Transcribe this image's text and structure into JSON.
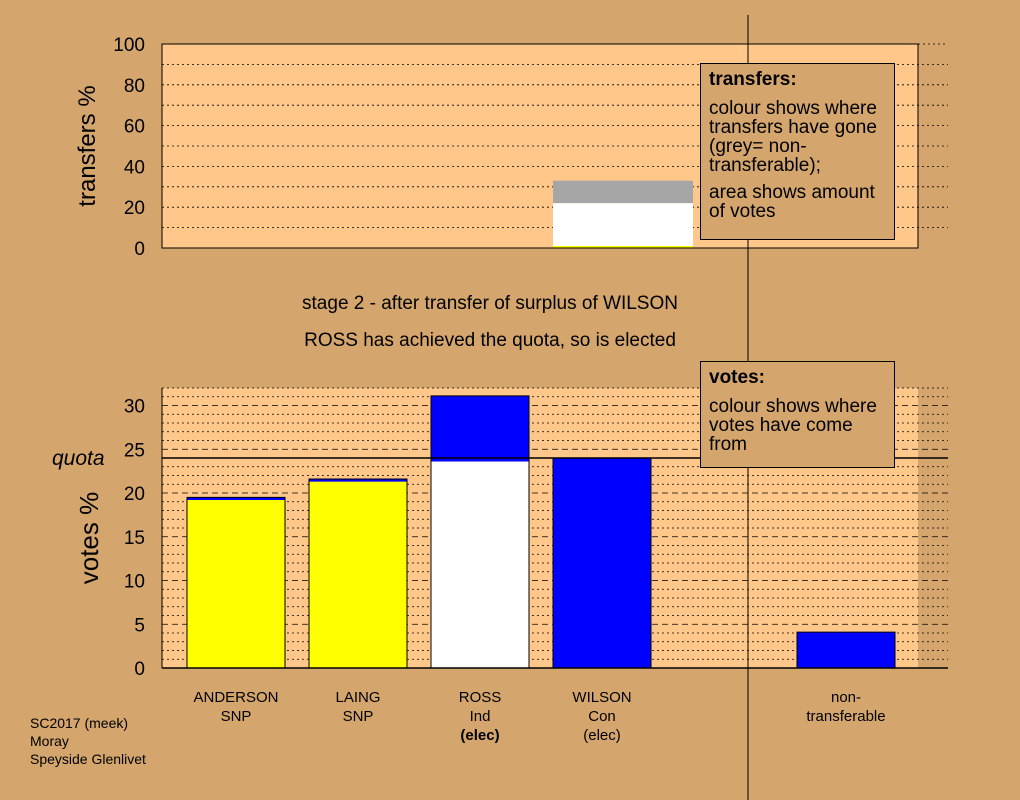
{
  "stage_title": "stage 2 - after transfer of surplus of WILSON",
  "stage_note": "ROSS has achieved the quota, so is elected",
  "transfers_legend": {
    "title": "transfers:",
    "line1": "colour shows where transfers have gone (grey= non-transferable);",
    "line2": "area shows amount of votes"
  },
  "votes_legend": {
    "title": "votes:",
    "line1": "colour shows where votes have come from"
  },
  "footer": {
    "line1": "SC2017 (meek)",
    "line2": "Moray",
    "line3": "Speyside Glenlivet"
  },
  "colors": {
    "background": "#d4a66e",
    "plot_area": "#ffc88a",
    "SNP": "#ffff00",
    "Ind": "#ffffff",
    "Con": "#0000ff",
    "non_transferable": "#a6a6a6"
  },
  "chart_data": [
    {
      "type": "bar",
      "id": "transfers",
      "ylabel": "transfers %",
      "ylim": [
        0,
        100
      ],
      "yticks": [
        0,
        20,
        40,
        60,
        80,
        100
      ],
      "grid": true,
      "transfer_from": "WILSON",
      "bars": [
        {
          "slot": 3,
          "segments": [
            {
              "to": "SNP",
              "value": 1,
              "color": "#ffff00"
            },
            {
              "to": "Ind",
              "value": 21,
              "color": "#ffffff"
            },
            {
              "to": "non-transferable",
              "value": 11,
              "color": "#a6a6a6"
            }
          ]
        }
      ]
    },
    {
      "type": "bar",
      "id": "votes",
      "ylabel": "votes %",
      "ylim": [
        0,
        32
      ],
      "yticks": [
        0,
        5,
        10,
        15,
        20,
        25,
        30
      ],
      "quota": 24,
      "quota_label": "quota",
      "grid": true,
      "categories": [
        {
          "name": "ANDERSON",
          "party": "SNP",
          "status": "",
          "status_bold": false
        },
        {
          "name": "LAING",
          "party": "SNP",
          "status": "",
          "status_bold": false
        },
        {
          "name": "ROSS",
          "party": "Ind",
          "status": "(elec)",
          "status_bold": true
        },
        {
          "name": "WILSON",
          "party": "Con",
          "status": "(elec)",
          "status_bold": false
        },
        {
          "name": "non-\ntransferable",
          "party": "",
          "status": "",
          "status_bold": false
        }
      ],
      "bars": [
        {
          "slot": 0,
          "segments": [
            {
              "from": "SNP",
              "value": 19.2,
              "color": "#ffff00"
            },
            {
              "from": "Con",
              "value": 0.3,
              "color": "#0000ff"
            }
          ]
        },
        {
          "slot": 1,
          "segments": [
            {
              "from": "SNP",
              "value": 21.3,
              "color": "#ffff00"
            },
            {
              "from": "Con",
              "value": 0.3,
              "color": "#0000ff"
            }
          ]
        },
        {
          "slot": 2,
          "segments": [
            {
              "from": "Ind",
              "value": 23.6,
              "color": "#ffffff"
            },
            {
              "from": "Con",
              "value": 7.5,
              "color": "#0000ff"
            }
          ]
        },
        {
          "slot": 3,
          "segments": [
            {
              "from": "Con",
              "value": 24.0,
              "color": "#0000ff"
            }
          ]
        },
        {
          "slot": 5,
          "segments": [
            {
              "from": "Con",
              "value": 4.1,
              "color": "#0000ff"
            }
          ]
        }
      ]
    }
  ]
}
